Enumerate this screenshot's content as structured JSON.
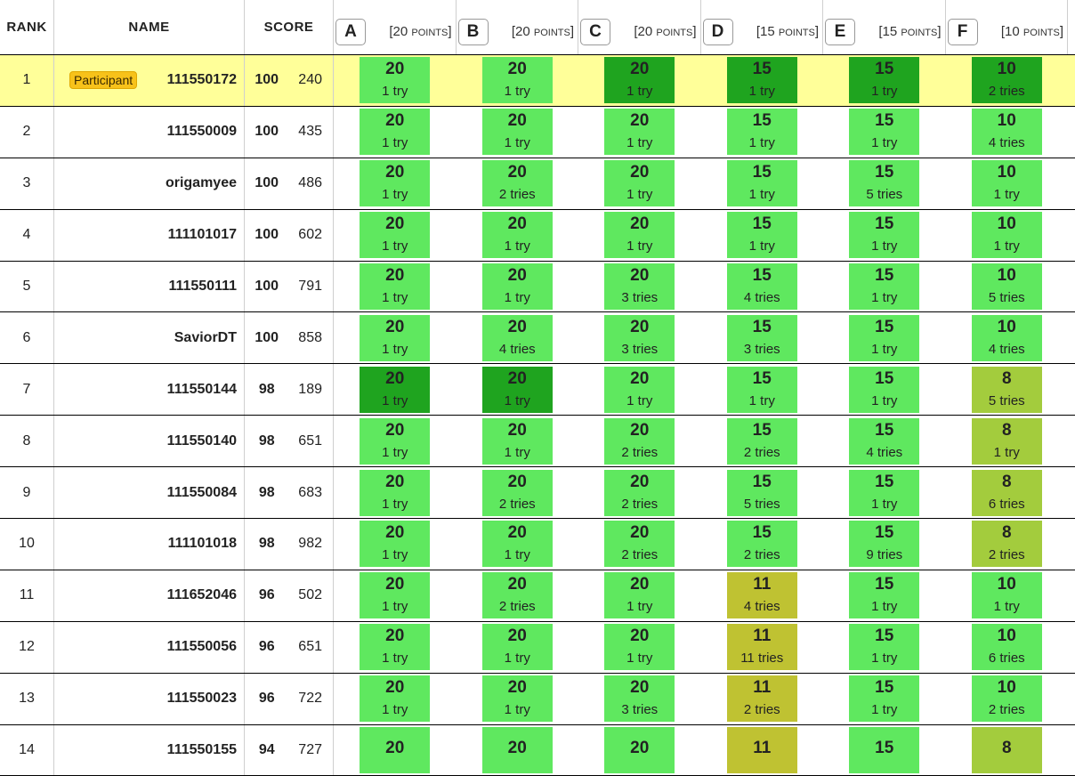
{
  "header": {
    "rank": "RANK",
    "name": "NAME",
    "score": "SCORE",
    "problems": [
      {
        "letter": "A",
        "points_pre": "[20 ",
        "points_word": "points",
        "points_post": "]"
      },
      {
        "letter": "B",
        "points_pre": "[20 ",
        "points_word": "points",
        "points_post": "]"
      },
      {
        "letter": "C",
        "points_pre": "[20 ",
        "points_word": "points",
        "points_post": "]"
      },
      {
        "letter": "D",
        "points_pre": "[15 ",
        "points_word": "points",
        "points_post": "]"
      },
      {
        "letter": "E",
        "points_pre": "[15 ",
        "points_word": "points",
        "points_post": "]"
      },
      {
        "letter": "F",
        "points_pre": "[10 ",
        "points_word": "points",
        "points_post": "]"
      }
    ]
  },
  "colors": {
    "solved": "#5fe85f",
    "first_solve": "#1fa41f",
    "partial_high": "#a3cc3d",
    "partial_mid": "#bfc232",
    "highlight_row": "#ffff99",
    "badge": "#f7c21a"
  },
  "rows": [
    {
      "rank": "1",
      "badge": "Participant",
      "name": "111550172",
      "score": "100",
      "penalty": "240",
      "highlight": true,
      "cells": [
        {
          "points": "20",
          "tries": "1 try",
          "state": "g-light"
        },
        {
          "points": "20",
          "tries": "1 try",
          "state": "g-light"
        },
        {
          "points": "20",
          "tries": "1 try",
          "state": "g-first"
        },
        {
          "points": "15",
          "tries": "1 try",
          "state": "g-first"
        },
        {
          "points": "15",
          "tries": "1 try",
          "state": "g-first"
        },
        {
          "points": "10",
          "tries": "2 tries",
          "state": "g-first"
        }
      ]
    },
    {
      "rank": "2",
      "badge": "",
      "name": "111550009",
      "score": "100",
      "penalty": "435",
      "highlight": false,
      "cells": [
        {
          "points": "20",
          "tries": "1 try",
          "state": "g-light"
        },
        {
          "points": "20",
          "tries": "1 try",
          "state": "g-light"
        },
        {
          "points": "20",
          "tries": "1 try",
          "state": "g-light"
        },
        {
          "points": "15",
          "tries": "1 try",
          "state": "g-light"
        },
        {
          "points": "15",
          "tries": "1 try",
          "state": "g-light"
        },
        {
          "points": "10",
          "tries": "4 tries",
          "state": "g-light"
        }
      ]
    },
    {
      "rank": "3",
      "badge": "",
      "name": "origamyee",
      "score": "100",
      "penalty": "486",
      "highlight": false,
      "cells": [
        {
          "points": "20",
          "tries": "1 try",
          "state": "g-light"
        },
        {
          "points": "20",
          "tries": "2 tries",
          "state": "g-light"
        },
        {
          "points": "20",
          "tries": "1 try",
          "state": "g-light"
        },
        {
          "points": "15",
          "tries": "1 try",
          "state": "g-light"
        },
        {
          "points": "15",
          "tries": "5 tries",
          "state": "g-light"
        },
        {
          "points": "10",
          "tries": "1 try",
          "state": "g-light"
        }
      ]
    },
    {
      "rank": "4",
      "badge": "",
      "name": "111101017",
      "score": "100",
      "penalty": "602",
      "highlight": false,
      "cells": [
        {
          "points": "20",
          "tries": "1 try",
          "state": "g-light"
        },
        {
          "points": "20",
          "tries": "1 try",
          "state": "g-light"
        },
        {
          "points": "20",
          "tries": "1 try",
          "state": "g-light"
        },
        {
          "points": "15",
          "tries": "1 try",
          "state": "g-light"
        },
        {
          "points": "15",
          "tries": "1 try",
          "state": "g-light"
        },
        {
          "points": "10",
          "tries": "1 try",
          "state": "g-light"
        }
      ]
    },
    {
      "rank": "5",
      "badge": "",
      "name": "111550111",
      "score": "100",
      "penalty": "791",
      "highlight": false,
      "cells": [
        {
          "points": "20",
          "tries": "1 try",
          "state": "g-light"
        },
        {
          "points": "20",
          "tries": "1 try",
          "state": "g-light"
        },
        {
          "points": "20",
          "tries": "3 tries",
          "state": "g-light"
        },
        {
          "points": "15",
          "tries": "4 tries",
          "state": "g-light"
        },
        {
          "points": "15",
          "tries": "1 try",
          "state": "g-light"
        },
        {
          "points": "10",
          "tries": "5 tries",
          "state": "g-light"
        }
      ]
    },
    {
      "rank": "6",
      "badge": "",
      "name": "SaviorDT",
      "score": "100",
      "penalty": "858",
      "highlight": false,
      "cells": [
        {
          "points": "20",
          "tries": "1 try",
          "state": "g-light"
        },
        {
          "points": "20",
          "tries": "4 tries",
          "state": "g-light"
        },
        {
          "points": "20",
          "tries": "3 tries",
          "state": "g-light"
        },
        {
          "points": "15",
          "tries": "3 tries",
          "state": "g-light"
        },
        {
          "points": "15",
          "tries": "1 try",
          "state": "g-light"
        },
        {
          "points": "10",
          "tries": "4 tries",
          "state": "g-light"
        }
      ]
    },
    {
      "rank": "7",
      "badge": "",
      "name": "111550144",
      "score": "98",
      "penalty": "189",
      "highlight": false,
      "cells": [
        {
          "points": "20",
          "tries": "1 try",
          "state": "g-first"
        },
        {
          "points": "20",
          "tries": "1 try",
          "state": "g-first"
        },
        {
          "points": "20",
          "tries": "1 try",
          "state": "g-light"
        },
        {
          "points": "15",
          "tries": "1 try",
          "state": "g-light"
        },
        {
          "points": "15",
          "tries": "1 try",
          "state": "g-light"
        },
        {
          "points": "8",
          "tries": "5 tries",
          "state": "g-olive"
        }
      ]
    },
    {
      "rank": "8",
      "badge": "",
      "name": "111550140",
      "score": "98",
      "penalty": "651",
      "highlight": false,
      "cells": [
        {
          "points": "20",
          "tries": "1 try",
          "state": "g-light"
        },
        {
          "points": "20",
          "tries": "1 try",
          "state": "g-light"
        },
        {
          "points": "20",
          "tries": "2 tries",
          "state": "g-light"
        },
        {
          "points": "15",
          "tries": "2 tries",
          "state": "g-light"
        },
        {
          "points": "15",
          "tries": "4 tries",
          "state": "g-light"
        },
        {
          "points": "8",
          "tries": "1 try",
          "state": "g-olive"
        }
      ]
    },
    {
      "rank": "9",
      "badge": "",
      "name": "111550084",
      "score": "98",
      "penalty": "683",
      "highlight": false,
      "cells": [
        {
          "points": "20",
          "tries": "1 try",
          "state": "g-light"
        },
        {
          "points": "20",
          "tries": "2 tries",
          "state": "g-light"
        },
        {
          "points": "20",
          "tries": "2 tries",
          "state": "g-light"
        },
        {
          "points": "15",
          "tries": "5 tries",
          "state": "g-light"
        },
        {
          "points": "15",
          "tries": "1 try",
          "state": "g-light"
        },
        {
          "points": "8",
          "tries": "6 tries",
          "state": "g-olive"
        }
      ]
    },
    {
      "rank": "10",
      "badge": "",
      "name": "111101018",
      "score": "98",
      "penalty": "982",
      "highlight": false,
      "cells": [
        {
          "points": "20",
          "tries": "1 try",
          "state": "g-light"
        },
        {
          "points": "20",
          "tries": "1 try",
          "state": "g-light"
        },
        {
          "points": "20",
          "tries": "2 tries",
          "state": "g-light"
        },
        {
          "points": "15",
          "tries": "2 tries",
          "state": "g-light"
        },
        {
          "points": "15",
          "tries": "9 tries",
          "state": "g-light"
        },
        {
          "points": "8",
          "tries": "2 tries",
          "state": "g-olive"
        }
      ]
    },
    {
      "rank": "11",
      "badge": "",
      "name": "111652046",
      "score": "96",
      "penalty": "502",
      "highlight": false,
      "cells": [
        {
          "points": "20",
          "tries": "1 try",
          "state": "g-light"
        },
        {
          "points": "20",
          "tries": "2 tries",
          "state": "g-light"
        },
        {
          "points": "20",
          "tries": "1 try",
          "state": "g-light"
        },
        {
          "points": "11",
          "tries": "4 tries",
          "state": "g-mustard"
        },
        {
          "points": "15",
          "tries": "1 try",
          "state": "g-light"
        },
        {
          "points": "10",
          "tries": "1 try",
          "state": "g-light"
        }
      ]
    },
    {
      "rank": "12",
      "badge": "",
      "name": "111550056",
      "score": "96",
      "penalty": "651",
      "highlight": false,
      "cells": [
        {
          "points": "20",
          "tries": "1 try",
          "state": "g-light"
        },
        {
          "points": "20",
          "tries": "1 try",
          "state": "g-light"
        },
        {
          "points": "20",
          "tries": "1 try",
          "state": "g-light"
        },
        {
          "points": "11",
          "tries": "11 tries",
          "state": "g-mustard"
        },
        {
          "points": "15",
          "tries": "1 try",
          "state": "g-light"
        },
        {
          "points": "10",
          "tries": "6 tries",
          "state": "g-light"
        }
      ]
    },
    {
      "rank": "13",
      "badge": "",
      "name": "111550023",
      "score": "96",
      "penalty": "722",
      "highlight": false,
      "cells": [
        {
          "points": "20",
          "tries": "1 try",
          "state": "g-light"
        },
        {
          "points": "20",
          "tries": "1 try",
          "state": "g-light"
        },
        {
          "points": "20",
          "tries": "3 tries",
          "state": "g-light"
        },
        {
          "points": "11",
          "tries": "2 tries",
          "state": "g-mustard"
        },
        {
          "points": "15",
          "tries": "1 try",
          "state": "g-light"
        },
        {
          "points": "10",
          "tries": "2 tries",
          "state": "g-light"
        }
      ]
    },
    {
      "rank": "14",
      "badge": "",
      "name": "111550155",
      "score": "94",
      "penalty": "727",
      "highlight": false,
      "cells": [
        {
          "points": "20",
          "tries": "",
          "state": "g-light"
        },
        {
          "points": "20",
          "tries": "",
          "state": "g-light"
        },
        {
          "points": "20",
          "tries": "",
          "state": "g-light"
        },
        {
          "points": "11",
          "tries": "",
          "state": "g-mustard"
        },
        {
          "points": "15",
          "tries": "",
          "state": "g-light"
        },
        {
          "points": "8",
          "tries": "",
          "state": "g-olive"
        }
      ]
    }
  ]
}
